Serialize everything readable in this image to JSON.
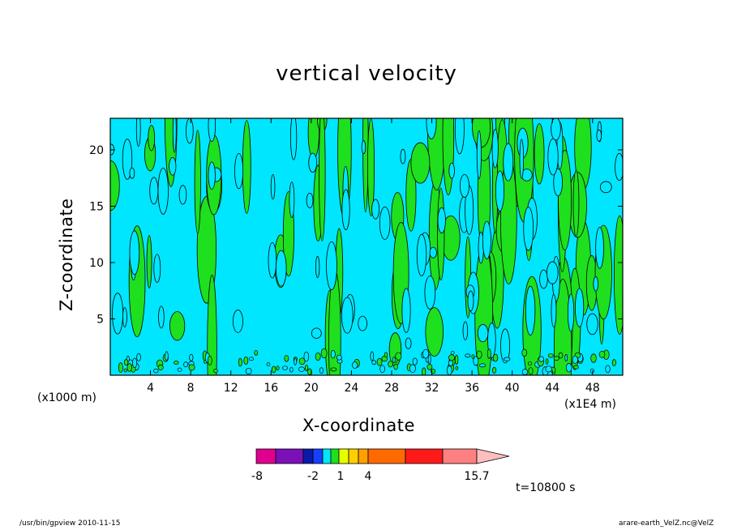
{
  "chart_data": {
    "type": "heatmap",
    "title": "vertical velocity",
    "xlabel": "X-coordinate",
    "ylabel": "Z-coordinate",
    "x_unit_label": "(x1000 m)",
    "x_unit_label_2": "(x1E4 m)",
    "xlim": [
      0,
      51
    ],
    "ylim": [
      0,
      22.8
    ],
    "x_ticks": [
      4,
      8,
      12,
      16,
      20,
      24,
      28,
      32,
      36,
      40,
      44,
      48
    ],
    "y_ticks": [
      5,
      10,
      15,
      20
    ],
    "colorbar": {
      "colors": [
        "#e0008e",
        "#7a10b8",
        "#0a1aa8",
        "#1640ff",
        "#00e6ff",
        "#1ee01e",
        "#e6ff00",
        "#ffd000",
        "#ffa000",
        "#ff6a00",
        "#ff1a1a",
        "#ff8080",
        "#ffbebe"
      ],
      "labels": [
        "-8",
        "-2",
        "1",
        "4",
        "15.7"
      ],
      "extend": "max"
    },
    "dominant_colors": {
      "negative": "#00e6ff",
      "positive": "#1ee01e"
    },
    "time_label": "t=10800 s",
    "grid": false
  },
  "footer": {
    "left": "/usr/bin/gpview   2010-11-15",
    "right": "arare-earth_VelZ.nc@VelZ"
  }
}
